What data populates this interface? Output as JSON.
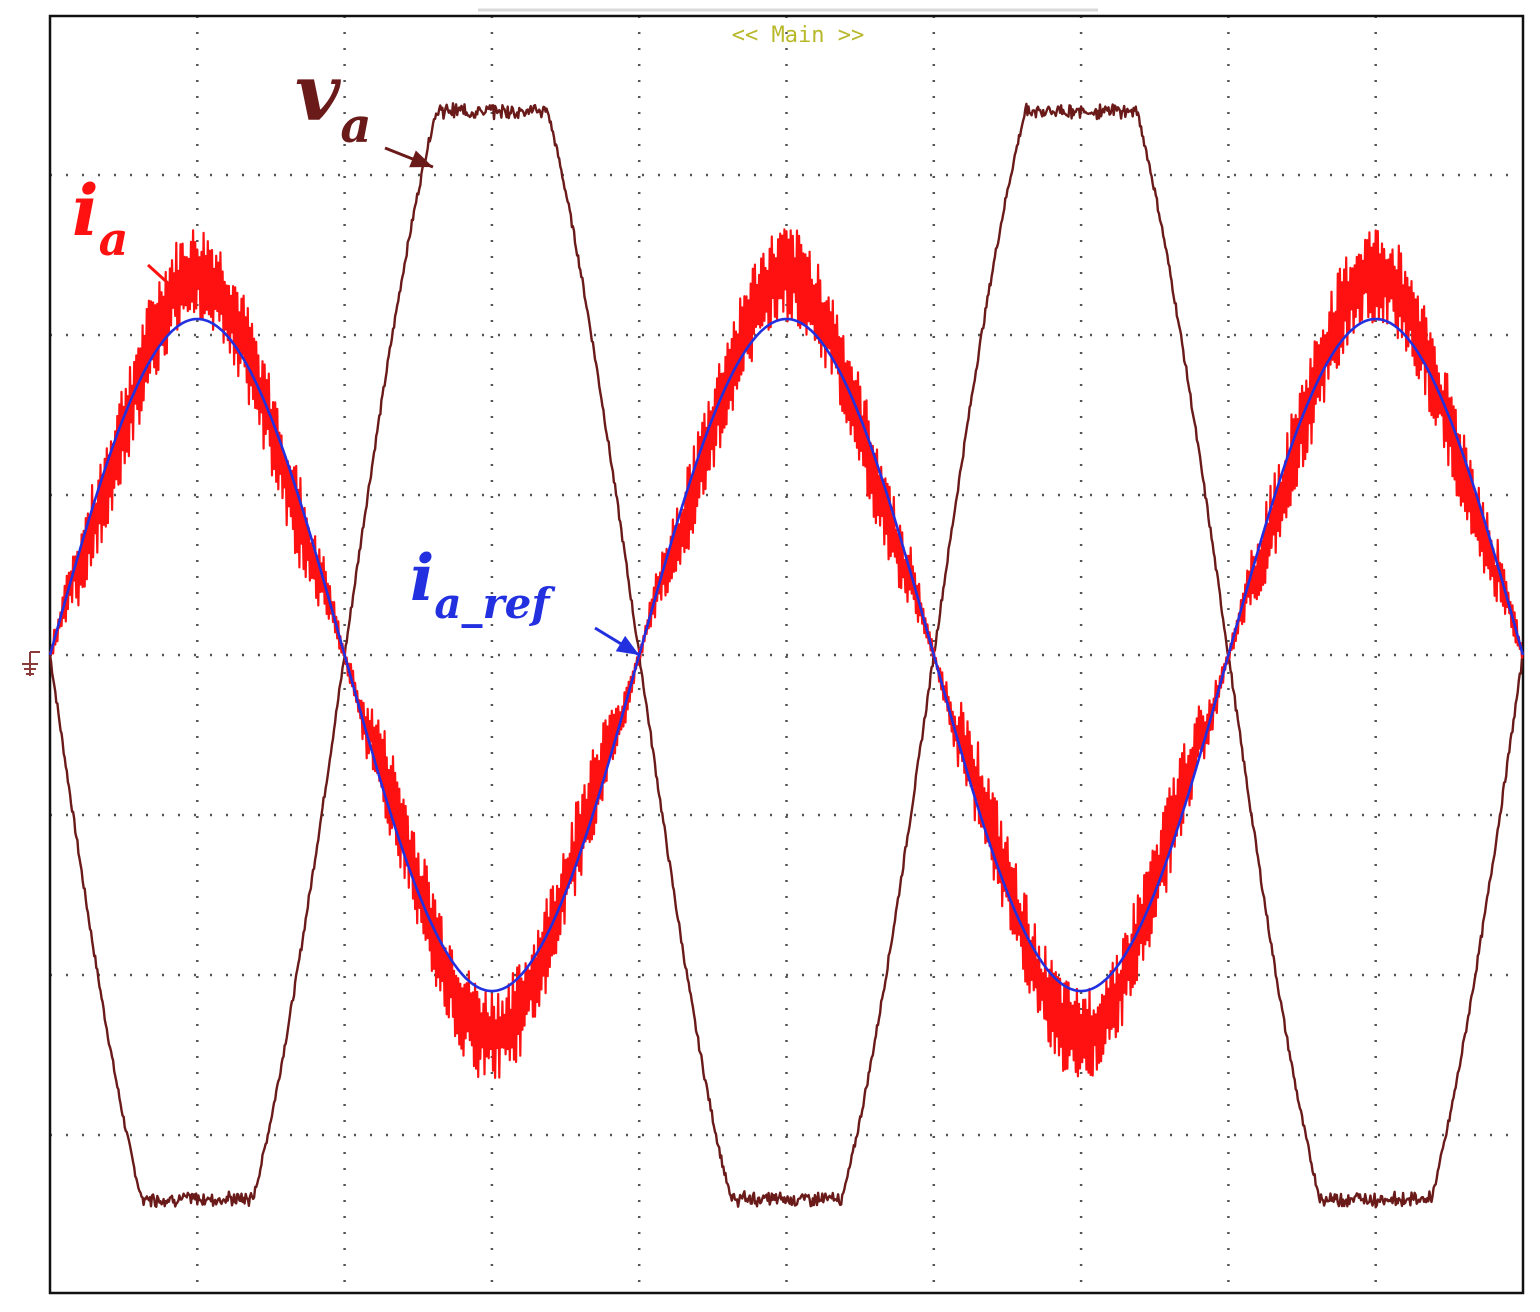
{
  "header": {
    "label": "<< Main >>"
  },
  "colors": {
    "background": "#ffffff",
    "grid": "#555555",
    "frame": "#111111",
    "header_text": "#b8b82a",
    "voltage": "#6b1a1a",
    "current": "#ff1111",
    "reference": "#2230e0",
    "ground": "#8b3a3a"
  },
  "chart_data": {
    "type": "line",
    "grid": true,
    "divisions": {
      "x": 10,
      "y": 8
    },
    "xlim": [
      0,
      10
    ],
    "ylim": [
      -4,
      4
    ],
    "series": [
      {
        "name": "v",
        "subscript": "a",
        "kind": "clipped-sine",
        "amplitude_div": 3.4,
        "peak_div": 3.4,
        "phase_deg": 180,
        "period_div": 4.0,
        "x0_div": 0.0,
        "values_desc": "flat-topped voltage waveform reaching about +3.4 div and -3.4 div"
      },
      {
        "name": "i",
        "subscript": "a",
        "kind": "sine-with-ripple",
        "amplitude_div": 2.2,
        "phase_deg": 0,
        "period_div": 4.0,
        "x0_div": 0.0
      },
      {
        "name": "i",
        "subscript": "a_ref",
        "kind": "sine",
        "amplitude_div": 2.1,
        "phase_deg": 0,
        "period_div": 4.0,
        "x0_div": 0.0
      }
    ],
    "annotations": [
      {
        "text_main": "v",
        "text_sub": "a",
        "series": "v_a",
        "target_x_div": 2.6,
        "target_y_div": 3.05
      },
      {
        "text_main": "i",
        "text_sub": "a",
        "series": "i_a",
        "target_x_div": 0.95,
        "target_y_div": 2.2
      },
      {
        "text_main": "i",
        "text_sub": "a_ref",
        "series": "i_a_ref",
        "target_x_div": 4.0,
        "target_y_div": 0.0
      }
    ]
  }
}
